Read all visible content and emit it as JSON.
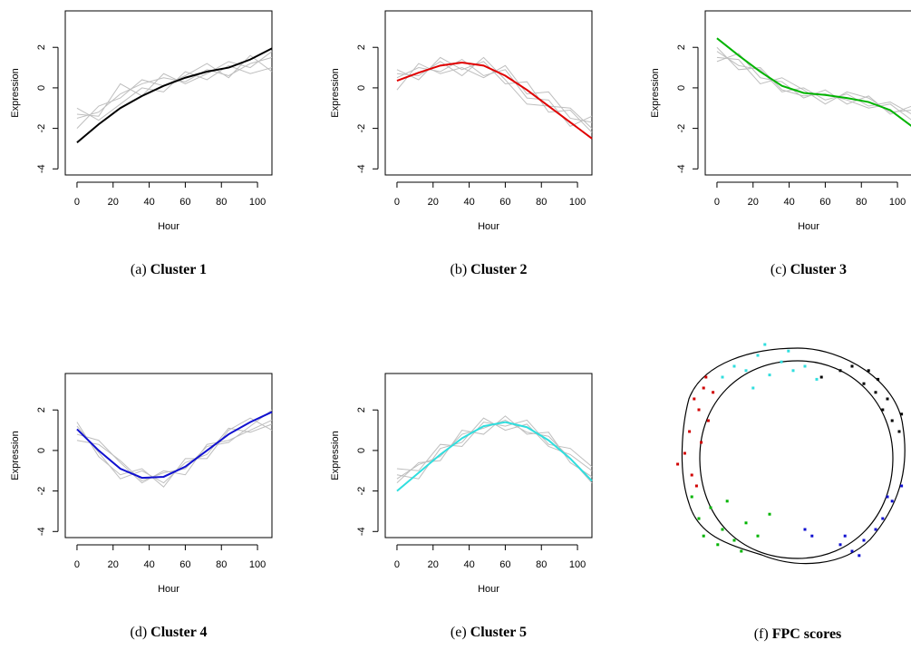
{
  "chart_data": [
    {
      "type": "line",
      "label": "(a)",
      "title": "Cluster 1",
      "xlabel": "Hour",
      "ylabel": "Expression",
      "x": [
        0,
        12,
        24,
        36,
        48,
        60,
        72,
        84,
        96,
        108
      ],
      "xlim": [
        -6.5,
        108
      ],
      "ylim": [
        -4.3,
        3.8
      ],
      "xticks": [
        0,
        20,
        40,
        60,
        80,
        100
      ],
      "yticks": [
        -4,
        -2,
        0,
        2
      ],
      "series": [
        {
          "color": "#bebebe",
          "values": [
            -1.5,
            -1.2,
            -0.3,
            0.2,
            0.5,
            0.3,
            0.9,
            0.6,
            1.2,
            1.5
          ]
        },
        {
          "color": "#bebebe",
          "values": [
            -1.0,
            -1.6,
            -0.8,
            0.0,
            -0.2,
            0.8,
            0.4,
            1.1,
            0.7,
            1.0
          ]
        },
        {
          "color": "#bebebe",
          "values": [
            -2.0,
            -0.9,
            -0.5,
            0.4,
            0.1,
            0.6,
            1.2,
            0.5,
            1.6,
            0.8
          ]
        },
        {
          "color": "#bebebe",
          "values": [
            -1.3,
            -1.4,
            0.2,
            -0.4,
            0.7,
            0.2,
            0.7,
            1.3,
            1.0,
            1.8
          ]
        },
        {
          "color": "#000000",
          "values": [
            -2.7,
            -1.8,
            -1.0,
            -0.4,
            0.1,
            0.5,
            0.8,
            1.0,
            1.4,
            1.95
          ]
        }
      ]
    },
    {
      "type": "line",
      "label": "(b)",
      "title": "Cluster 2",
      "xlabel": "Hour",
      "ylabel": "Expression",
      "x": [
        0,
        12,
        24,
        36,
        48,
        60,
        72,
        84,
        96,
        108
      ],
      "xlim": [
        -6.5,
        108
      ],
      "ylim": [
        -4.3,
        3.8
      ],
      "xticks": [
        0,
        20,
        40,
        60,
        80,
        100
      ],
      "yticks": [
        -4,
        -2,
        0,
        2
      ],
      "series": [
        {
          "color": "#bebebe",
          "values": [
            0.5,
            1.0,
            0.8,
            1.4,
            0.6,
            0.9,
            -0.5,
            -0.6,
            -1.9,
            -1.4
          ]
        },
        {
          "color": "#bebebe",
          "values": [
            0.9,
            0.4,
            1.5,
            0.9,
            1.3,
            0.2,
            0.3,
            -1.2,
            -1.1,
            -2.2
          ]
        },
        {
          "color": "#bebebe",
          "values": [
            -0.1,
            1.2,
            0.7,
            1.0,
            0.5,
            1.1,
            -0.3,
            -0.2,
            -1.5,
            -1.7
          ]
        },
        {
          "color": "#bebebe",
          "values": [
            0.7,
            0.6,
            1.3,
            0.6,
            1.5,
            0.4,
            -0.8,
            -0.9,
            -1.0,
            -2.0
          ]
        },
        {
          "color": "#e00000",
          "values": [
            0.35,
            0.75,
            1.1,
            1.25,
            1.1,
            0.6,
            -0.1,
            -0.9,
            -1.7,
            -2.5
          ]
        }
      ]
    },
    {
      "type": "line",
      "label": "(c)",
      "title": "Cluster 3",
      "xlabel": "Hour",
      "ylabel": "Expression",
      "x": [
        0,
        12,
        24,
        36,
        48,
        60,
        72,
        84,
        96,
        108
      ],
      "xlim": [
        -6.5,
        108
      ],
      "ylim": [
        -4.3,
        3.8
      ],
      "xticks": [
        0,
        20,
        40,
        60,
        80,
        100
      ],
      "yticks": [
        -4,
        -2,
        0,
        2
      ],
      "series": [
        {
          "color": "#bebebe",
          "values": [
            1.8,
            1.1,
            0.9,
            -0.2,
            0.0,
            -0.6,
            -0.3,
            -0.9,
            -0.7,
            -1.3
          ]
        },
        {
          "color": "#bebebe",
          "values": [
            1.3,
            1.7,
            0.5,
            0.3,
            -0.5,
            -0.1,
            -0.8,
            -0.4,
            -1.3,
            -0.9
          ]
        },
        {
          "color": "#bebebe",
          "values": [
            2.0,
            0.9,
            1.0,
            -0.1,
            -0.4,
            -0.3,
            -0.6,
            -1.0,
            -0.8,
            -1.6
          ]
        },
        {
          "color": "#bebebe",
          "values": [
            1.5,
            1.4,
            0.2,
            0.5,
            -0.1,
            -0.8,
            -0.2,
            -0.5,
            -1.2,
            -1.1
          ]
        },
        {
          "color": "#00b400",
          "values": [
            2.45,
            1.6,
            0.8,
            0.1,
            -0.25,
            -0.35,
            -0.5,
            -0.7,
            -1.1,
            -1.9
          ]
        }
      ]
    },
    {
      "type": "line",
      "label": "(d)",
      "title": "Cluster 4",
      "xlabel": "Hour",
      "ylabel": "Expression",
      "x": [
        0,
        12,
        24,
        36,
        48,
        60,
        72,
        84,
        96,
        108
      ],
      "xlim": [
        -6.5,
        108
      ],
      "ylim": [
        -4.3,
        3.8
      ],
      "xticks": [
        0,
        20,
        40,
        60,
        80,
        100
      ],
      "yticks": [
        -4,
        -2,
        0,
        2
      ],
      "series": [
        {
          "color": "#bebebe",
          "values": [
            0.8,
            0.5,
            -0.6,
            -1.6,
            -1.0,
            -1.2,
            0.3,
            0.5,
            1.0,
            1.5
          ]
        },
        {
          "color": "#bebebe",
          "values": [
            1.4,
            -0.3,
            -1.2,
            -0.9,
            -1.8,
            -0.4,
            -0.4,
            1.0,
            1.6,
            1.0
          ]
        },
        {
          "color": "#bebebe",
          "values": [
            0.5,
            0.3,
            -0.5,
            -1.5,
            -1.1,
            -0.9,
            0.2,
            0.4,
            1.2,
            2.0
          ]
        },
        {
          "color": "#bebebe",
          "values": [
            1.2,
            -0.1,
            -1.4,
            -1.0,
            -1.6,
            -0.6,
            -0.2,
            1.1,
            0.9,
            1.3
          ]
        },
        {
          "color": "#1010d0",
          "values": [
            1.05,
            0.0,
            -0.9,
            -1.35,
            -1.3,
            -0.8,
            0.0,
            0.8,
            1.4,
            1.9
          ]
        }
      ]
    },
    {
      "type": "line",
      "label": "(e)",
      "title": "Cluster 5",
      "xlabel": "Hour",
      "ylabel": "Expression",
      "x": [
        0,
        12,
        24,
        36,
        48,
        60,
        72,
        84,
        96,
        108
      ],
      "xlim": [
        -6.5,
        108
      ],
      "ylim": [
        -4.3,
        3.8
      ],
      "xticks": [
        0,
        20,
        40,
        60,
        80,
        100
      ],
      "yticks": [
        -4,
        -2,
        0,
        2
      ],
      "series": [
        {
          "color": "#bebebe",
          "values": [
            -1.2,
            -1.4,
            0.1,
            0.4,
            1.6,
            1.0,
            1.3,
            0.2,
            -0.2,
            -1.0
          ]
        },
        {
          "color": "#bebebe",
          "values": [
            -1.6,
            -0.6,
            -0.5,
            1.0,
            0.8,
            1.7,
            0.8,
            0.9,
            -0.6,
            -1.3
          ]
        },
        {
          "color": "#bebebe",
          "values": [
            -0.9,
            -1.0,
            0.3,
            0.2,
            1.4,
            1.2,
            1.5,
            0.3,
            0.1,
            -0.8
          ]
        },
        {
          "color": "#bebebe",
          "values": [
            -1.4,
            -0.7,
            -0.3,
            0.8,
            1.1,
            1.5,
            0.9,
            0.7,
            -0.4,
            -1.6
          ]
        },
        {
          "color": "#30dede",
          "values": [
            -2.0,
            -1.1,
            -0.2,
            0.6,
            1.2,
            1.4,
            1.15,
            0.5,
            -0.4,
            -1.5
          ]
        }
      ]
    },
    {
      "type": "scatter",
      "label": "(f)",
      "title": "FPC scores",
      "xlim": [
        0,
        100
      ],
      "ylim": [
        0,
        100
      ],
      "series": [
        {
          "color": "#d00000",
          "x": [
            1,
            4,
            6,
            8,
            10,
            12,
            14,
            7,
            9,
            11,
            13,
            16
          ],
          "y": [
            45,
            50,
            60,
            75,
            70,
            80,
            65,
            40,
            35,
            55,
            85,
            78
          ]
        },
        {
          "color": "#00b400",
          "x": [
            7,
            10,
            12,
            15,
            18,
            20,
            25,
            22,
            30,
            35,
            28,
            40
          ],
          "y": [
            30,
            20,
            12,
            25,
            8,
            15,
            10,
            28,
            18,
            12,
            5,
            22
          ]
        },
        {
          "color": "#30dede",
          "x": [
            20,
            25,
            30,
            35,
            40,
            45,
            50,
            55,
            60,
            38,
            48,
            33
          ],
          "y": [
            85,
            90,
            88,
            95,
            86,
            92,
            88,
            90,
            84,
            100,
            97,
            80
          ]
        },
        {
          "color": "#000000",
          "x": [
            62,
            70,
            75,
            80,
            85,
            88,
            92,
            95,
            90,
            82,
            96,
            86
          ],
          "y": [
            85,
            88,
            90,
            82,
            78,
            70,
            65,
            60,
            75,
            88,
            68,
            84
          ]
        },
        {
          "color": "#1010d0",
          "x": [
            55,
            58,
            70,
            72,
            75,
            80,
            85,
            88,
            92,
            96,
            78,
            90
          ],
          "y": [
            15,
            12,
            8,
            12,
            5,
            10,
            15,
            20,
            28,
            35,
            3,
            30
          ]
        }
      ]
    }
  ]
}
